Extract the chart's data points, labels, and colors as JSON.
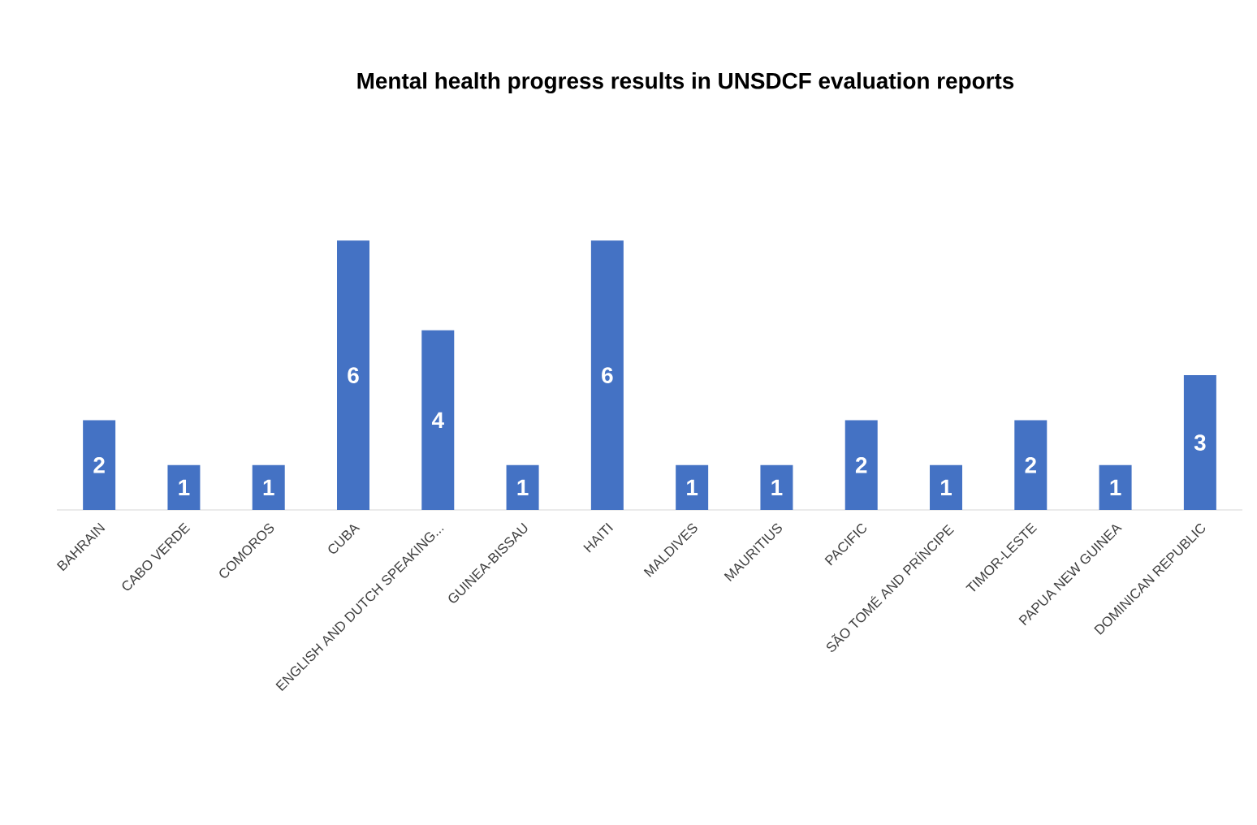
{
  "chart_data": {
    "type": "bar",
    "title": "Mental health progress results in UNSDCF evaluation reports",
    "categories": [
      "BAHRAIN",
      "CABO VERDE",
      "COMOROS",
      "CUBA",
      "ENGLISH AND DUTCH SPEAKING...",
      "GUINEA-BISSAU",
      "HAITI",
      "MALDIVES",
      "MAURITIUS",
      "PACIFIC",
      "SÃO TOMÉ AND PRÍNCIPE",
      "TIMOR-LESTE",
      "PAPUA NEW GUINEA",
      "DOMINICAN REPUBLIC"
    ],
    "values": [
      2,
      1,
      1,
      6,
      4,
      1,
      6,
      1,
      1,
      2,
      1,
      2,
      1,
      3
    ],
    "color": "#4472c4",
    "data_labels": true
  }
}
